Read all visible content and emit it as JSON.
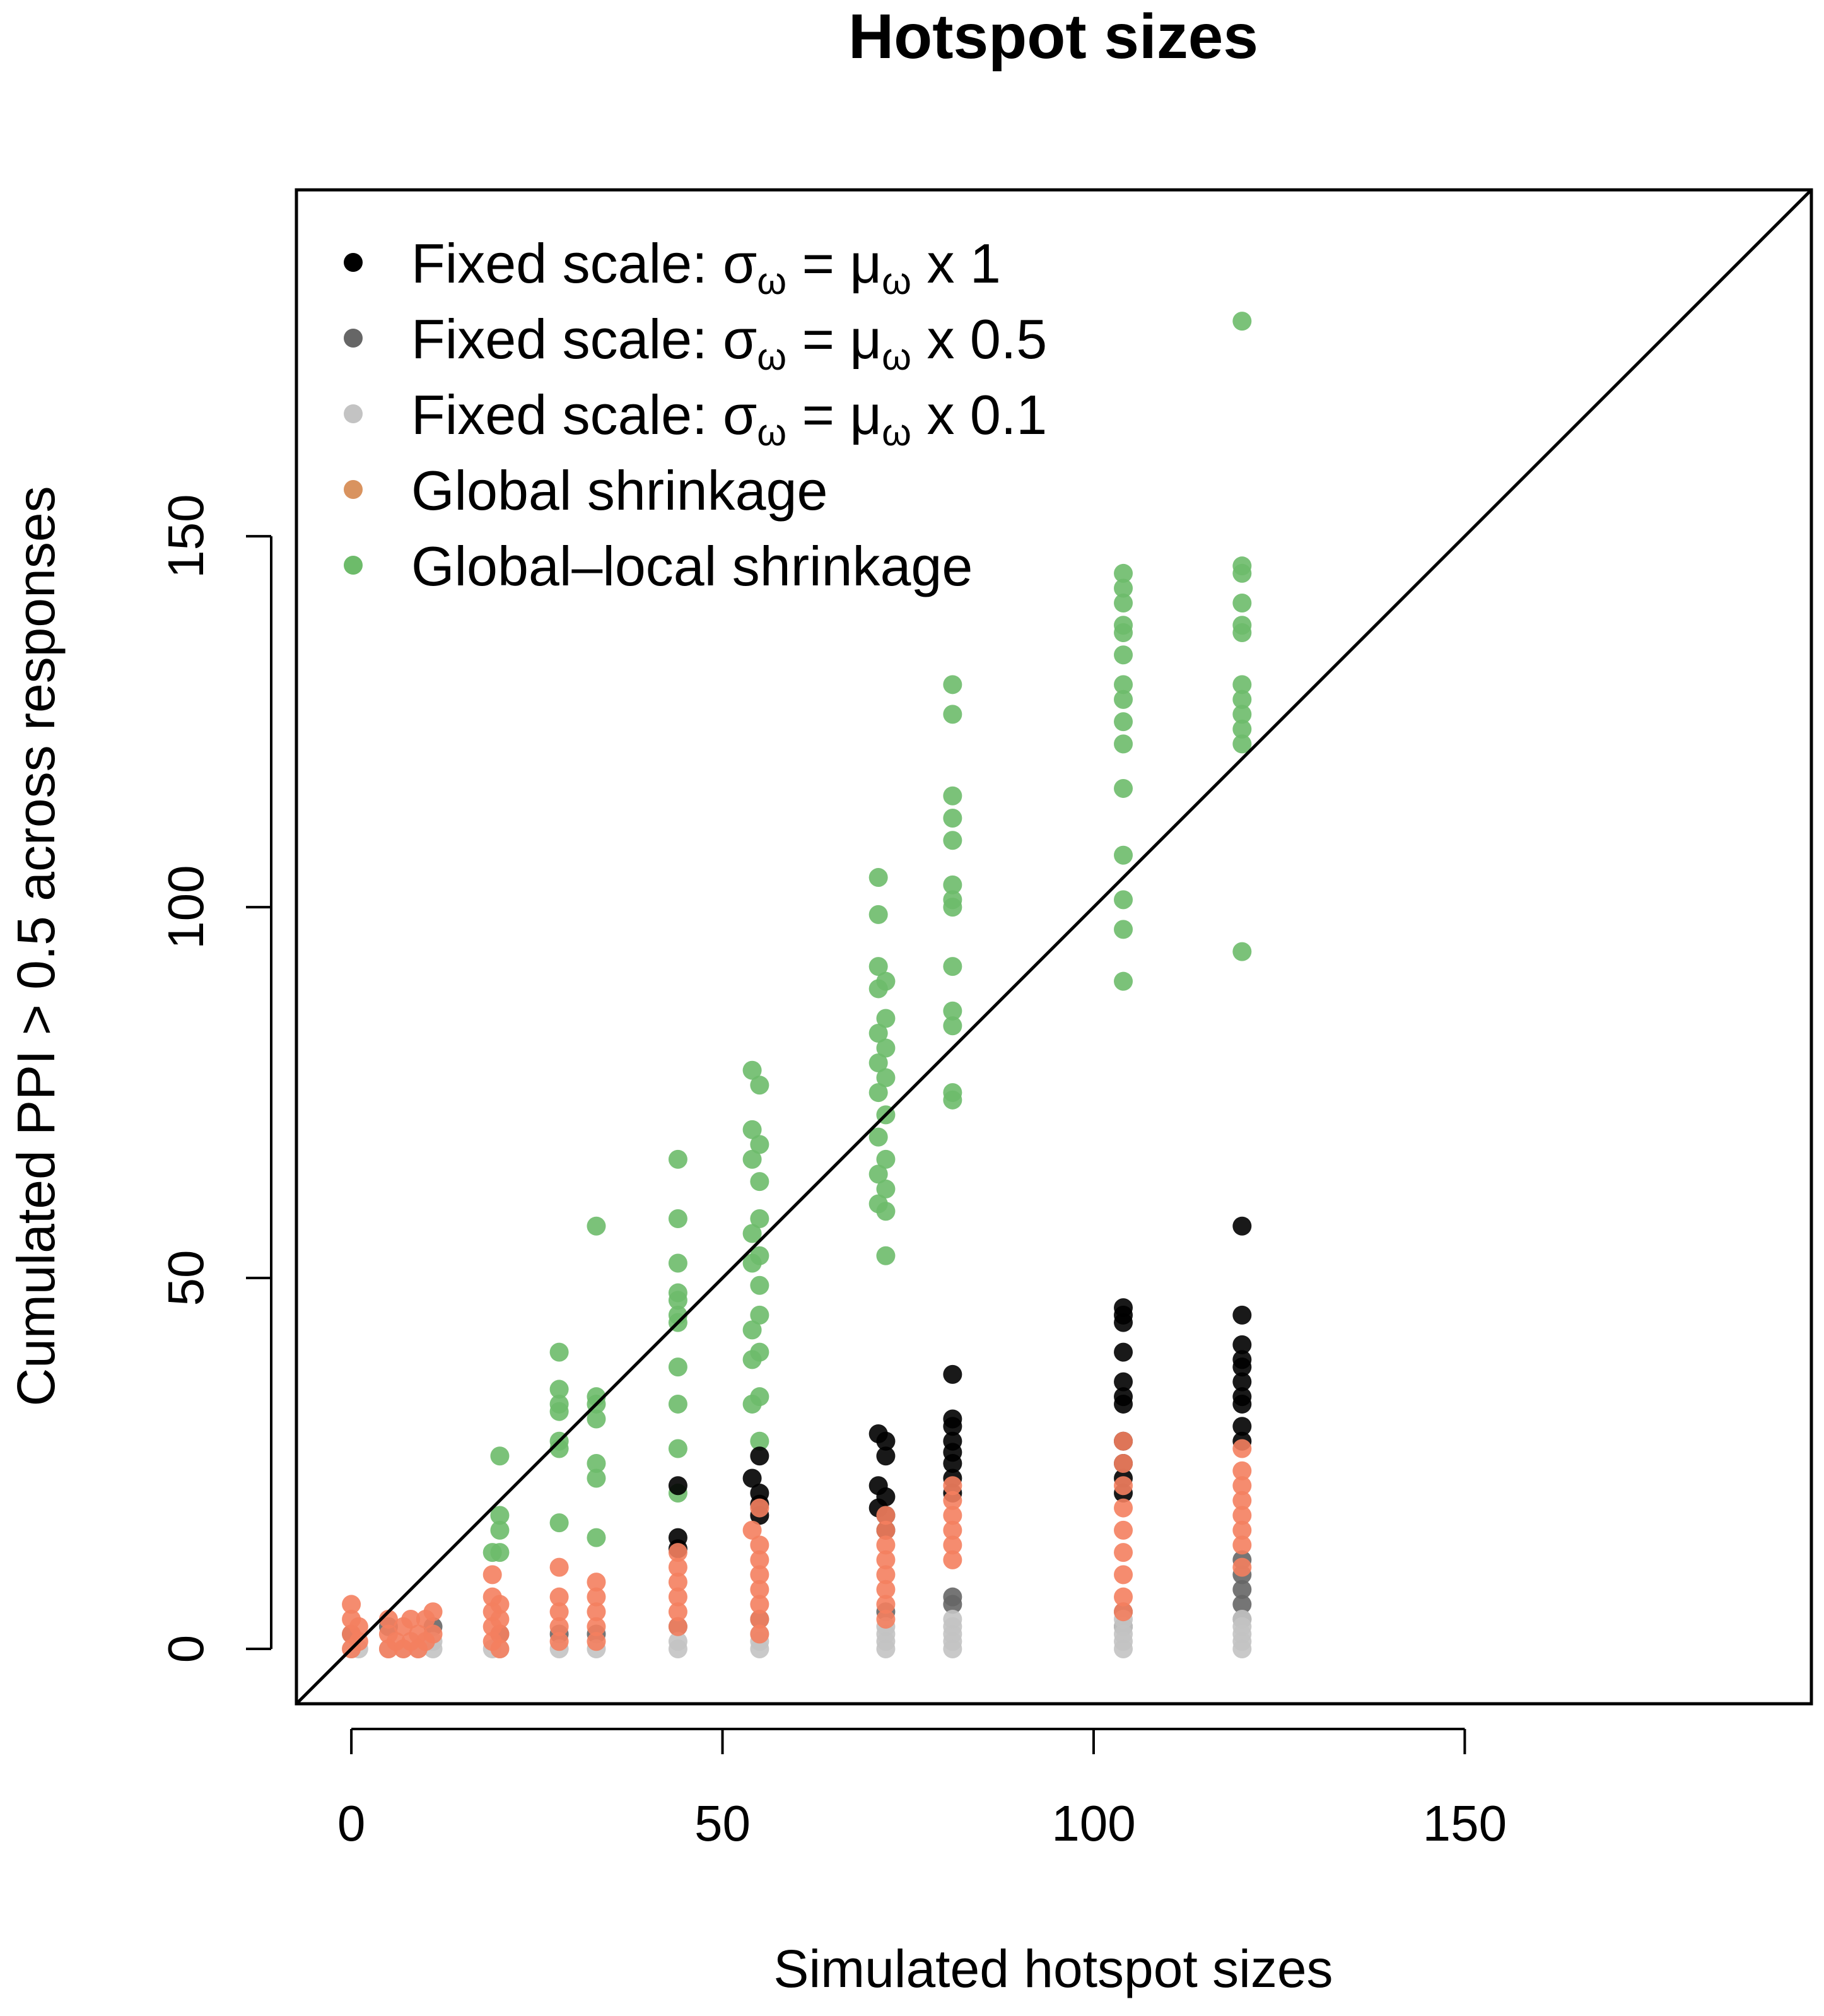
{
  "chart_data": {
    "type": "scatter",
    "title": "Hotspot sizes",
    "xlabel": "Simulated hotspot sizes",
    "ylabel": "Cumulated PPI > 0.5 across responses",
    "xlim": [
      -7.4,
      196.7
    ],
    "ylim": [
      -7.4,
      196.7
    ],
    "x_ticks": [
      "0",
      "50",
      "100",
      "150"
    ],
    "y_ticks": [
      "0",
      "50",
      "100",
      "150"
    ],
    "grid": false,
    "legend_position": "top-left",
    "reference_line": "y = x",
    "series": [
      {
        "name": "Global–local shrinkage",
        "legend": {
          "prefix": "Global–local shrinkage",
          "sub1": "",
          "mid": "",
          "sub2": "",
          "suffix": ""
        },
        "color": "#6dbb6a",
        "points": [
          [
            20,
            26
          ],
          [
            20,
            18
          ],
          [
            20,
            16
          ],
          [
            19,
            13
          ],
          [
            20,
            13
          ],
          [
            28,
            40
          ],
          [
            28,
            35
          ],
          [
            28,
            33
          ],
          [
            28,
            32
          ],
          [
            28,
            28
          ],
          [
            28,
            27
          ],
          [
            28,
            17
          ],
          [
            33,
            57
          ],
          [
            33,
            34
          ],
          [
            33,
            33
          ],
          [
            33,
            31
          ],
          [
            33,
            25
          ],
          [
            33,
            23
          ],
          [
            33,
            15
          ],
          [
            44,
            66
          ],
          [
            44,
            58
          ],
          [
            44,
            52
          ],
          [
            44,
            48
          ],
          [
            44,
            47
          ],
          [
            44,
            45
          ],
          [
            44,
            44
          ],
          [
            44,
            38
          ],
          [
            44,
            33
          ],
          [
            44,
            27
          ],
          [
            44,
            21
          ],
          [
            54,
            78
          ],
          [
            55,
            76
          ],
          [
            54,
            70
          ],
          [
            55,
            68
          ],
          [
            54,
            66
          ],
          [
            55,
            63
          ],
          [
            55,
            58
          ],
          [
            54,
            56
          ],
          [
            55,
            53
          ],
          [
            54,
            52
          ],
          [
            55,
            49
          ],
          [
            55,
            45
          ],
          [
            54,
            43
          ],
          [
            55,
            40
          ],
          [
            54,
            39
          ],
          [
            55,
            34
          ],
          [
            54,
            33
          ],
          [
            55,
            28
          ],
          [
            71,
            104
          ],
          [
            71,
            99
          ],
          [
            71,
            92
          ],
          [
            72,
            90
          ],
          [
            71,
            89
          ],
          [
            72,
            85
          ],
          [
            71,
            83
          ],
          [
            72,
            81
          ],
          [
            71,
            79
          ],
          [
            72,
            77
          ],
          [
            71,
            75
          ],
          [
            72,
            72
          ],
          [
            71,
            69
          ],
          [
            72,
            66
          ],
          [
            71,
            64
          ],
          [
            72,
            62
          ],
          [
            71,
            60
          ],
          [
            72,
            59
          ],
          [
            72,
            53
          ],
          [
            81,
            130
          ],
          [
            81,
            126
          ],
          [
            81,
            115
          ],
          [
            81,
            112
          ],
          [
            81,
            109
          ],
          [
            81,
            103
          ],
          [
            81,
            101
          ],
          [
            81,
            100
          ],
          [
            81,
            92
          ],
          [
            81,
            86
          ],
          [
            81,
            84
          ],
          [
            81,
            75
          ],
          [
            81,
            74
          ],
          [
            104,
            145
          ],
          [
            104,
            143
          ],
          [
            104,
            141
          ],
          [
            104,
            138
          ],
          [
            104,
            137
          ],
          [
            104,
            134
          ],
          [
            104,
            130
          ],
          [
            104,
            128
          ],
          [
            104,
            125
          ],
          [
            104,
            122
          ],
          [
            104,
            116
          ],
          [
            104,
            107
          ],
          [
            104,
            101
          ],
          [
            104,
            97
          ],
          [
            104,
            90
          ],
          [
            120,
            179
          ],
          [
            120,
            146
          ],
          [
            120,
            145
          ],
          [
            120,
            141
          ],
          [
            120,
            138
          ],
          [
            120,
            137
          ],
          [
            120,
            130
          ],
          [
            120,
            128
          ],
          [
            120,
            126
          ],
          [
            120,
            124
          ],
          [
            120,
            122
          ],
          [
            120,
            94
          ]
        ]
      },
      {
        "name": "Fixed scale: σω = μω x 1",
        "legend": {
          "prefix": "Fixed scale: σ",
          "sub1": "ω",
          "mid": " = μ",
          "sub2": "ω",
          "suffix": " x 1"
        },
        "color": "#000000",
        "points": [
          [
            44,
            22
          ],
          [
            44,
            15
          ],
          [
            44,
            13.5
          ],
          [
            55,
            26
          ],
          [
            54,
            23
          ],
          [
            55,
            21
          ],
          [
            55,
            19.5
          ],
          [
            55,
            18
          ],
          [
            71,
            29
          ],
          [
            72,
            28
          ],
          [
            72,
            26
          ],
          [
            71,
            22
          ],
          [
            72,
            20.5
          ],
          [
            71,
            19
          ],
          [
            72,
            18
          ],
          [
            72,
            16
          ],
          [
            81,
            37
          ],
          [
            81,
            31
          ],
          [
            81,
            30
          ],
          [
            81,
            28
          ],
          [
            81,
            26.5
          ],
          [
            81,
            25
          ],
          [
            81,
            23
          ],
          [
            81,
            21
          ],
          [
            104,
            46
          ],
          [
            104,
            45
          ],
          [
            104,
            44
          ],
          [
            104,
            40
          ],
          [
            104,
            36
          ],
          [
            104,
            34
          ],
          [
            104,
            33
          ],
          [
            104,
            28
          ],
          [
            104,
            25
          ],
          [
            104,
            23
          ],
          [
            104,
            21
          ],
          [
            120,
            57
          ],
          [
            120,
            45
          ],
          [
            120,
            41
          ],
          [
            120,
            39
          ],
          [
            120,
            38
          ],
          [
            120,
            36
          ],
          [
            120,
            34
          ],
          [
            120,
            33
          ],
          [
            120,
            30
          ],
          [
            120,
            28
          ]
        ]
      },
      {
        "name": "Fixed scale: σω = μω x 0.5",
        "legend": {
          "prefix": "Fixed scale: σ",
          "sub1": "ω",
          "mid": " = μ",
          "sub2": "ω",
          "suffix": " x 0.5"
        },
        "color": "#666666",
        "points": [
          [
            0,
            2
          ],
          [
            5,
            3
          ],
          [
            11,
            3
          ],
          [
            20,
            2
          ],
          [
            28,
            2
          ],
          [
            33,
            2
          ],
          [
            44,
            3
          ],
          [
            55,
            4
          ],
          [
            72,
            5
          ],
          [
            81,
            7
          ],
          [
            81,
            6
          ],
          [
            104,
            5
          ],
          [
            104,
            3
          ],
          [
            120,
            12
          ],
          [
            120,
            10
          ],
          [
            120,
            8
          ],
          [
            120,
            6
          ],
          [
            120,
            4
          ]
        ]
      },
      {
        "name": "Fixed scale: σω = μω x 0.1",
        "legend": {
          "prefix": "Fixed scale: σ",
          "sub1": "ω",
          "mid": " = μ",
          "sub2": "ω",
          "suffix": " x 0.1"
        },
        "color": "#c3c3c3",
        "points": [
          [
            0,
            0
          ],
          [
            1,
            0
          ],
          [
            5,
            0
          ],
          [
            7,
            0
          ],
          [
            9,
            0
          ],
          [
            11,
            0
          ],
          [
            11,
            1
          ],
          [
            19,
            0
          ],
          [
            20,
            0
          ],
          [
            28,
            0
          ],
          [
            33,
            0
          ],
          [
            44,
            0
          ],
          [
            44,
            1
          ],
          [
            55,
            0
          ],
          [
            55,
            1
          ],
          [
            55,
            2
          ],
          [
            72,
            0
          ],
          [
            72,
            1
          ],
          [
            72,
            2
          ],
          [
            72,
            3
          ],
          [
            81,
            0
          ],
          [
            81,
            1
          ],
          [
            81,
            2
          ],
          [
            81,
            3
          ],
          [
            81,
            4
          ],
          [
            104,
            0
          ],
          [
            104,
            1
          ],
          [
            104,
            2
          ],
          [
            104,
            3
          ],
          [
            104,
            4
          ],
          [
            120,
            0
          ],
          [
            120,
            1
          ],
          [
            120,
            2
          ],
          [
            120,
            3
          ],
          [
            120,
            4
          ]
        ]
      },
      {
        "name": "Global shrinkage",
        "legend": {
          "prefix": "Global shrinkage",
          "sub1": "",
          "mid": "",
          "sub2": "",
          "suffix": ""
        },
        "color": "#f4805f",
        "legend_color": "#d9935f",
        "points": [
          [
            0,
            0
          ],
          [
            0,
            2
          ],
          [
            0,
            4
          ],
          [
            0,
            6
          ],
          [
            1,
            1
          ],
          [
            1,
            3
          ],
          [
            5,
            0
          ],
          [
            5,
            2
          ],
          [
            5,
            4
          ],
          [
            6,
            1
          ],
          [
            7,
            0
          ],
          [
            7,
            3
          ],
          [
            8,
            1
          ],
          [
            8,
            4
          ],
          [
            9,
            0
          ],
          [
            9,
            2
          ],
          [
            10,
            1
          ],
          [
            10,
            4
          ],
          [
            11,
            2
          ],
          [
            11,
            5
          ],
          [
            19,
            10
          ],
          [
            19,
            7
          ],
          [
            19,
            5
          ],
          [
            19,
            3
          ],
          [
            19,
            1
          ],
          [
            20,
            6
          ],
          [
            20,
            4
          ],
          [
            20,
            2
          ],
          [
            20,
            0
          ],
          [
            28,
            11
          ],
          [
            28,
            7
          ],
          [
            28,
            5
          ],
          [
            28,
            3
          ],
          [
            28,
            1
          ],
          [
            33,
            9
          ],
          [
            33,
            7
          ],
          [
            33,
            5
          ],
          [
            33,
            3
          ],
          [
            33,
            1
          ],
          [
            44,
            13
          ],
          [
            44,
            11
          ],
          [
            44,
            9
          ],
          [
            44,
            7
          ],
          [
            44,
            5
          ],
          [
            44,
            3
          ],
          [
            54,
            16
          ],
          [
            55,
            19
          ],
          [
            55,
            14
          ],
          [
            55,
            12
          ],
          [
            55,
            10
          ],
          [
            55,
            8
          ],
          [
            55,
            6
          ],
          [
            55,
            4
          ],
          [
            55,
            2
          ],
          [
            72,
            18
          ],
          [
            72,
            16
          ],
          [
            72,
            14
          ],
          [
            72,
            12
          ],
          [
            72,
            10
          ],
          [
            72,
            8
          ],
          [
            72,
            6
          ],
          [
            72,
            4
          ],
          [
            81,
            22
          ],
          [
            81,
            20
          ],
          [
            81,
            18
          ],
          [
            81,
            16
          ],
          [
            81,
            14
          ],
          [
            81,
            12
          ],
          [
            104,
            28
          ],
          [
            104,
            25
          ],
          [
            104,
            22
          ],
          [
            104,
            19
          ],
          [
            104,
            16
          ],
          [
            104,
            13
          ],
          [
            104,
            10
          ],
          [
            104,
            7
          ],
          [
            104,
            5
          ],
          [
            120,
            27
          ],
          [
            120,
            24
          ],
          [
            120,
            22
          ],
          [
            120,
            20
          ],
          [
            120,
            18
          ],
          [
            120,
            16
          ],
          [
            120,
            14
          ],
          [
            120,
            11
          ]
        ]
      }
    ]
  }
}
